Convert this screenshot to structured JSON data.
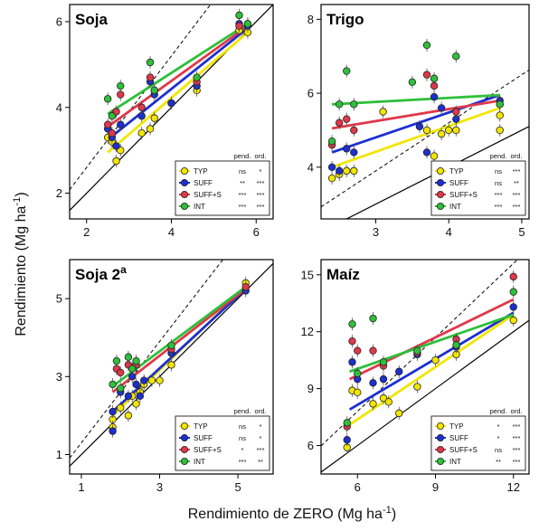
{
  "figure": {
    "ylabel": "Rendimiento (Mg ha-1)",
    "xlabel": "Rendimiento de ZERO (Mg ha-1)"
  },
  "legend_headers": {
    "slope": "pend.",
    "ord": "ord."
  },
  "treatments": [
    {
      "name": "TYP",
      "color": "#f2e600"
    },
    {
      "name": "SUFF",
      "color": "#1c2fd0"
    },
    {
      "name": "SUFF+S",
      "color": "#e0384a"
    },
    {
      "name": "INT",
      "color": "#2fbf3a"
    }
  ],
  "chart_data": [
    {
      "type": "scatter",
      "title": "Soja",
      "xlim": [
        1.6,
        6.4
      ],
      "ylim": [
        1.4,
        6.4
      ],
      "xticks": [
        2,
        4,
        6
      ],
      "yticks": [
        2,
        4,
        6
      ],
      "xtick_labels": [
        "2",
        "4",
        "6"
      ],
      "ytick_labels": [
        "2",
        "4",
        "6"
      ],
      "series": [
        {
          "name": "TYP",
          "sig_slope": "ns",
          "sig_ord": "*",
          "line": [
            [
              2.5,
              2.95
            ],
            [
              5.8,
              5.75
            ]
          ],
          "points": [
            [
              2.5,
              3.3
            ],
            [
              2.6,
              3.2
            ],
            [
              2.7,
              2.75
            ],
            [
              2.8,
              3.0
            ],
            [
              3.3,
              3.4
            ],
            [
              3.5,
              3.5
            ],
            [
              3.6,
              3.75
            ],
            [
              4.0,
              4.1
            ],
            [
              4.6,
              4.4
            ],
            [
              5.6,
              5.8
            ],
            [
              5.8,
              5.75
            ]
          ]
        },
        {
          "name": "SUFF",
          "sig_slope": "**",
          "sig_ord": "***",
          "line": [
            [
              2.5,
              3.25
            ],
            [
              5.8,
              5.85
            ]
          ],
          "points": [
            [
              2.5,
              3.5
            ],
            [
              2.6,
              3.3
            ],
            [
              2.7,
              3.1
            ],
            [
              2.8,
              3.6
            ],
            [
              3.3,
              3.8
            ],
            [
              3.5,
              4.6
            ],
            [
              3.6,
              4.3
            ],
            [
              4.0,
              4.1
            ],
            [
              4.6,
              4.5
            ],
            [
              5.6,
              5.95
            ],
            [
              5.8,
              5.9
            ]
          ]
        },
        {
          "name": "SUFF+S",
          "sig_slope": "***",
          "sig_ord": "***",
          "line": [
            [
              2.5,
              3.55
            ],
            [
              5.8,
              5.9
            ]
          ],
          "points": [
            [
              2.5,
              3.6
            ],
            [
              2.6,
              3.4
            ],
            [
              2.7,
              3.9
            ],
            [
              2.8,
              4.3
            ],
            [
              3.3,
              4.0
            ],
            [
              3.5,
              4.7
            ],
            [
              3.6,
              4.4
            ],
            [
              4.6,
              4.6
            ],
            [
              5.6,
              5.9
            ],
            [
              5.8,
              5.95
            ]
          ]
        },
        {
          "name": "INT",
          "sig_slope": "***",
          "sig_ord": "***",
          "line": [
            [
              2.5,
              3.85
            ],
            [
              5.8,
              5.95
            ]
          ],
          "points": [
            [
              2.5,
              4.2
            ],
            [
              2.6,
              3.8
            ],
            [
              2.8,
              4.5
            ],
            [
              3.5,
              5.05
            ],
            [
              3.6,
              4.4
            ],
            [
              4.6,
              4.7
            ],
            [
              5.6,
              6.15
            ],
            [
              5.8,
              5.95
            ]
          ]
        }
      ]
    },
    {
      "type": "scatter",
      "title": "Trigo",
      "xlim": [
        2.25,
        5.1
      ],
      "ylim": [
        2.6,
        8.4
      ],
      "xticks": [
        3,
        4,
        5
      ],
      "yticks": [
        4,
        6,
        8
      ],
      "xtick_labels": [
        "3",
        "4",
        "5"
      ],
      "ytick_labels": [
        "4",
        "6",
        "8"
      ],
      "series": [
        {
          "name": "TYP",
          "sig_slope": "ns",
          "sig_ord": "***",
          "line": [
            [
              2.4,
              4.0
            ],
            [
              4.7,
              5.6
            ]
          ],
          "points": [
            [
              2.4,
              3.7
            ],
            [
              2.5,
              3.8
            ],
            [
              2.6,
              3.9
            ],
            [
              2.7,
              3.9
            ],
            [
              3.1,
              5.5
            ],
            [
              3.7,
              5.0
            ],
            [
              3.8,
              4.3
            ],
            [
              3.9,
              4.9
            ],
            [
              4.0,
              5.0
            ],
            [
              4.1,
              5.0
            ],
            [
              4.7,
              5.0
            ],
            [
              4.7,
              5.4
            ]
          ]
        },
        {
          "name": "SUFF",
          "sig_slope": "ns",
          "sig_ord": "**",
          "line": [
            [
              2.4,
              4.4
            ],
            [
              4.7,
              5.95
            ]
          ],
          "points": [
            [
              2.4,
              4.0
            ],
            [
              2.5,
              3.9
            ],
            [
              2.6,
              4.5
            ],
            [
              2.7,
              4.4
            ],
            [
              3.6,
              5.1
            ],
            [
              3.7,
              4.4
            ],
            [
              3.8,
              5.9
            ],
            [
              3.9,
              5.6
            ],
            [
              4.1,
              5.3
            ],
            [
              4.7,
              5.8
            ]
          ]
        },
        {
          "name": "SUFF+S",
          "sig_slope": "***",
          "sig_ord": "***",
          "line": [
            [
              2.4,
              5.05
            ],
            [
              4.7,
              5.8
            ]
          ],
          "points": [
            [
              2.4,
              4.6
            ],
            [
              2.5,
              5.2
            ],
            [
              2.6,
              5.3
            ],
            [
              2.7,
              5.0
            ],
            [
              3.7,
              6.5
            ],
            [
              3.8,
              6.2
            ],
            [
              4.1,
              5.5
            ],
            [
              4.7,
              5.7
            ]
          ]
        },
        {
          "name": "INT",
          "sig_slope": "***",
          "sig_ord": "***",
          "line": [
            [
              2.4,
              5.7
            ],
            [
              4.7,
              5.95
            ]
          ],
          "points": [
            [
              2.4,
              4.7
            ],
            [
              2.5,
              5.7
            ],
            [
              2.6,
              6.6
            ],
            [
              2.7,
              5.7
            ],
            [
              3.5,
              6.3
            ],
            [
              3.7,
              7.3
            ],
            [
              3.8,
              6.4
            ],
            [
              4.1,
              7.0
            ],
            [
              4.7,
              5.7
            ]
          ]
        }
      ]
    },
    {
      "type": "scatter",
      "title": "Soja 2a",
      "xlim": [
        0.7,
        5.9
      ],
      "ylim": [
        0.5,
        6.0
      ],
      "xticks": [
        1,
        3,
        5
      ],
      "yticks": [
        1,
        3,
        5
      ],
      "xtick_labels": [
        "1",
        "3",
        "5"
      ],
      "ytick_labels": [
        "1",
        "3",
        "5"
      ],
      "series": [
        {
          "name": "TYP",
          "sig_slope": "ns",
          "sig_ord": "*",
          "line": [
            [
              1.8,
              2.0
            ],
            [
              5.2,
              5.3
            ]
          ],
          "points": [
            [
              1.8,
              1.9
            ],
            [
              1.8,
              1.7
            ],
            [
              2.0,
              2.2
            ],
            [
              2.2,
              2.0
            ],
            [
              2.3,
              2.5
            ],
            [
              2.4,
              2.3
            ],
            [
              2.5,
              2.6
            ],
            [
              2.6,
              2.8
            ],
            [
              2.8,
              2.9
            ],
            [
              3.0,
              2.9
            ],
            [
              3.3,
              3.3
            ],
            [
              5.2,
              5.4
            ]
          ]
        },
        {
          "name": "SUFF",
          "sig_slope": "ns",
          "sig_ord": "*",
          "line": [
            [
              1.8,
              2.1
            ],
            [
              5.2,
              5.25
            ]
          ],
          "points": [
            [
              1.8,
              2.1
            ],
            [
              1.8,
              1.6
            ],
            [
              2.0,
              2.6
            ],
            [
              2.2,
              2.5
            ],
            [
              2.3,
              3.0
            ],
            [
              2.4,
              2.8
            ],
            [
              2.5,
              2.5
            ],
            [
              2.6,
              2.9
            ],
            [
              3.3,
              3.6
            ],
            [
              5.2,
              5.2
            ]
          ]
        },
        {
          "name": "SUFF+S",
          "sig_slope": "*",
          "sig_ord": "***",
          "line": [
            [
              1.8,
              2.6
            ],
            [
              5.2,
              5.25
            ]
          ],
          "points": [
            [
              1.9,
              3.2
            ],
            [
              2.0,
              3.1
            ],
            [
              2.2,
              3.3
            ],
            [
              2.4,
              3.3
            ],
            [
              3.3,
              3.7
            ],
            [
              5.2,
              5.3
            ]
          ]
        },
        {
          "name": "INT",
          "sig_slope": "***",
          "sig_ord": "**",
          "line": [
            [
              1.8,
              2.75
            ],
            [
              5.2,
              5.3
            ]
          ],
          "points": [
            [
              1.8,
              2.8
            ],
            [
              1.9,
              3.4
            ],
            [
              2.0,
              2.7
            ],
            [
              2.2,
              3.5
            ],
            [
              2.3,
              3.2
            ],
            [
              2.4,
              3.4
            ],
            [
              3.3,
              3.8
            ]
          ]
        }
      ]
    },
    {
      "type": "scatter",
      "title": "Maíz",
      "xlim": [
        4.6,
        12.6
      ],
      "ylim": [
        4.5,
        15.8
      ],
      "xticks": [
        6,
        9,
        12
      ],
      "yticks": [
        6,
        9,
        12,
        15
      ],
      "xtick_labels": [
        "6",
        "9",
        "12"
      ],
      "ytick_labels": [
        "6",
        "9",
        "12",
        "15"
      ],
      "series": [
        {
          "name": "TYP",
          "sig_slope": "*",
          "sig_ord": "***",
          "line": [
            [
              5.7,
              7.1
            ],
            [
              12.0,
              12.9
            ]
          ],
          "points": [
            [
              5.6,
              5.9
            ],
            [
              5.8,
              8.9
            ],
            [
              6.0,
              8.8
            ],
            [
              6.6,
              8.2
            ],
            [
              7.0,
              8.5
            ],
            [
              7.2,
              8.3
            ],
            [
              7.6,
              7.7
            ],
            [
              8.3,
              9.1
            ],
            [
              9.0,
              10.5
            ],
            [
              9.8,
              10.8
            ],
            [
              12.0,
              12.6
            ]
          ]
        },
        {
          "name": "SUFF",
          "sig_slope": "*",
          "sig_ord": "***",
          "line": [
            [
              5.7,
              7.9
            ],
            [
              12.0,
              13.0
            ]
          ],
          "points": [
            [
              5.6,
              6.3
            ],
            [
              5.8,
              10.4
            ],
            [
              6.0,
              9.5
            ],
            [
              6.6,
              9.3
            ],
            [
              7.0,
              9.5
            ],
            [
              7.6,
              9.9
            ],
            [
              8.3,
              10.8
            ],
            [
              9.8,
              11.2
            ],
            [
              12.0,
              13.3
            ]
          ]
        },
        {
          "name": "SUFF+S",
          "sig_slope": "ns",
          "sig_ord": "***",
          "line": [
            [
              5.7,
              9.5
            ],
            [
              12.0,
              13.7
            ]
          ],
          "points": [
            [
              5.6,
              7.0
            ],
            [
              5.8,
              11.5
            ],
            [
              6.0,
              11.0
            ],
            [
              6.6,
              11.0
            ],
            [
              7.0,
              10.2
            ],
            [
              8.3,
              10.9
            ],
            [
              9.8,
              11.6
            ],
            [
              12.0,
              14.9
            ]
          ]
        },
        {
          "name": "INT",
          "sig_slope": "**",
          "sig_ord": "***",
          "line": [
            [
              5.7,
              9.9
            ],
            [
              12.0,
              12.9
            ]
          ],
          "points": [
            [
              5.6,
              7.2
            ],
            [
              5.8,
              12.4
            ],
            [
              6.0,
              9.8
            ],
            [
              6.6,
              12.7
            ],
            [
              7.0,
              10.4
            ],
            [
              8.3,
              11.0
            ],
            [
              9.8,
              11.3
            ],
            [
              12.0,
              14.1
            ]
          ]
        }
      ]
    }
  ]
}
